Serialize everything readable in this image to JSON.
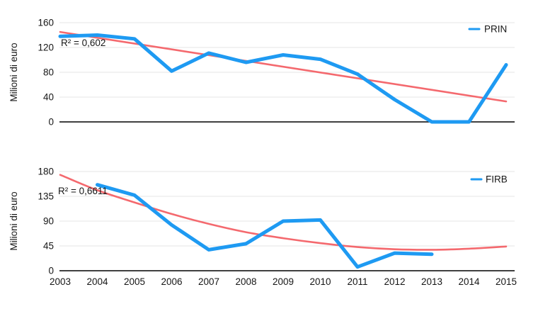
{
  "colors": {
    "series_blue": "#1e9af2",
    "trend_red": "#f4696e",
    "gridline": "#e4e4e4",
    "axis_black": "#000000",
    "text": "#161616",
    "background": "#ffffff"
  },
  "x_axis": {
    "labels": [
      "2003",
      "2004",
      "2005",
      "2006",
      "2007",
      "2008",
      "2009",
      "2010",
      "2011",
      "2012",
      "2013",
      "2014",
      "2015"
    ]
  },
  "chart_data": [
    {
      "type": "line",
      "title": "",
      "ylabel": "Milioni di euro",
      "legend": [
        "PRIN"
      ],
      "legend_position": "top-right-inside",
      "grid": true,
      "ylim": [
        0,
        160
      ],
      "yticks": [
        0,
        40,
        80,
        120,
        160
      ],
      "xlim": [
        2003,
        2015
      ],
      "x": [
        2003,
        2004,
        2005,
        2006,
        2007,
        2008,
        2009,
        2010,
        2011,
        2012,
        2013,
        2014,
        2015
      ],
      "series": [
        {
          "name": "PRIN",
          "values": [
            138,
            140,
            134,
            82,
            111,
            96,
            108,
            101,
            77,
            36,
            0,
            0,
            92
          ]
        }
      ],
      "trendline": {
        "type": "linear",
        "r2_label": "R² = 0,602",
        "points": {
          "x": [
            2003,
            2015
          ],
          "values": [
            145,
            33
          ]
        }
      }
    },
    {
      "type": "line",
      "title": "",
      "ylabel": "Milioni di euro",
      "legend": [
        "FIRB"
      ],
      "legend_position": "top-right-inside",
      "grid": true,
      "ylim": [
        0,
        180
      ],
      "yticks": [
        0,
        45,
        90,
        135,
        180
      ],
      "xlim": [
        2003,
        2015
      ],
      "x": [
        2004,
        2005,
        2006,
        2007,
        2008,
        2009,
        2010,
        2011,
        2012,
        2013
      ],
      "series": [
        {
          "name": "FIRB",
          "values": [
            156,
            137,
            83,
            38,
            49,
            90,
            92,
            7,
            32,
            30
          ]
        }
      ],
      "trendline": {
        "type": "polynomial",
        "r2_label": "R² = 0,6611",
        "points": {
          "x": [
            2003,
            2004,
            2005,
            2006,
            2007,
            2008,
            2009,
            2010,
            2011,
            2012,
            2013,
            2014,
            2015
          ],
          "values": [
            174,
            146,
            124,
            103,
            85,
            70,
            59,
            50,
            43,
            39,
            38,
            40,
            44
          ]
        }
      }
    }
  ]
}
